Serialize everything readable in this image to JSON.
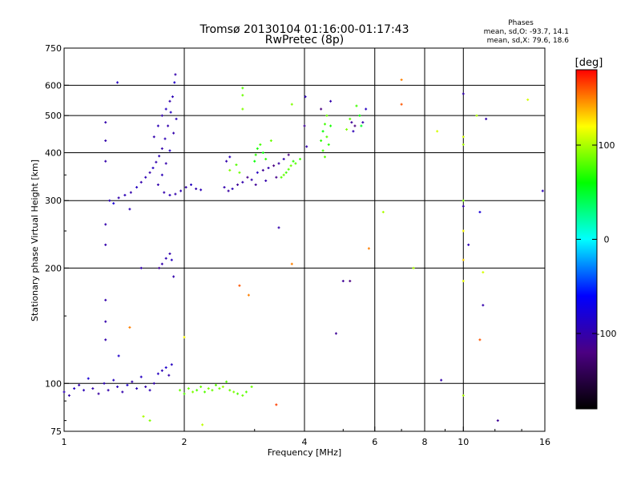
{
  "header": {
    "title_line1": "Tromsø 20130104 01:16:00-01:17:43",
    "title_line2": "RwPretec (8p)",
    "stats_title": "Phases",
    "stats_o": "mean, sd,O: -93.7, 14.1",
    "stats_x": "mean, sd,X:  79.6, 18.6"
  },
  "colorbar": {
    "label": "[deg]",
    "ticks": [
      "100",
      "0",
      "-100"
    ],
    "tick_values": [
      100,
      0,
      -100
    ],
    "range": [
      -180,
      180
    ],
    "colors": [
      "#000000",
      "#4b0082",
      "#0000ff",
      "#00ffff",
      "#00ff00",
      "#ffff00",
      "#ff0000"
    ]
  },
  "chart_data": {
    "type": "scatter",
    "xscale": "log",
    "yscale": "log",
    "xlabel": "Frequency [MHz]",
    "ylabel": "Stationary phase Virtual Height [km]",
    "xlim": [
      1,
      16
    ],
    "ylim": [
      75,
      750
    ],
    "x_ticks": [
      "1",
      "2",
      "4",
      "6",
      "8",
      "10",
      "16"
    ],
    "x_tick_values": [
      1,
      2,
      4,
      6,
      8,
      10,
      16
    ],
    "x_gridlines": [
      2,
      4,
      6,
      8,
      10
    ],
    "y_ticks": [
      "750",
      "600",
      "500",
      "400",
      "300",
      "200",
      "100",
      "75"
    ],
    "y_tick_values": [
      750,
      600,
      500,
      400,
      300,
      200,
      100,
      75
    ],
    "y_gridlines": [
      100,
      200,
      300,
      400,
      500,
      600
    ],
    "grid": true,
    "color_key": "phase_deg",
    "series": [
      {
        "points": [
          [
            1.0,
            95,
            -95
          ],
          [
            1.03,
            93,
            -100
          ],
          [
            1.06,
            97,
            -90
          ],
          [
            1.09,
            99,
            -100
          ],
          [
            1.12,
            96,
            -95
          ],
          [
            1.15,
            103,
            -80
          ],
          [
            1.18,
            97,
            -100
          ],
          [
            1.22,
            94,
            -105
          ],
          [
            1.26,
            100,
            -95
          ],
          [
            1.29,
            96,
            -100
          ],
          [
            1.33,
            102,
            -90
          ],
          [
            1.36,
            98,
            -95
          ],
          [
            1.4,
            95,
            -100
          ],
          [
            1.44,
            99,
            -85
          ],
          [
            1.48,
            101,
            -100
          ],
          [
            1.52,
            97,
            -95
          ],
          [
            1.56,
            104,
            -90
          ],
          [
            1.6,
            98,
            -100
          ],
          [
            1.64,
            96,
            -95
          ],
          [
            1.68,
            100,
            -100
          ],
          [
            1.72,
            106,
            -90
          ],
          [
            1.76,
            108,
            -95
          ],
          [
            1.8,
            110,
            -85
          ],
          [
            1.83,
            105,
            -100
          ],
          [
            1.86,
            112,
            -90
          ],
          [
            1.37,
            118,
            -85
          ]
        ]
      },
      {
        "points": [
          [
            1.3,
            300,
            -95
          ],
          [
            1.33,
            295,
            -80
          ],
          [
            1.37,
            305,
            -100
          ],
          [
            1.42,
            310,
            -95
          ],
          [
            1.47,
            315,
            -100
          ],
          [
            1.52,
            325,
            -90
          ],
          [
            1.56,
            335,
            -100
          ],
          [
            1.6,
            345,
            -95
          ],
          [
            1.64,
            355,
            -100
          ],
          [
            1.67,
            365,
            -90
          ],
          [
            1.7,
            378,
            -100
          ],
          [
            1.73,
            392,
            -95
          ],
          [
            1.76,
            410,
            -100
          ],
          [
            1.79,
            435,
            -95
          ],
          [
            1.82,
            470,
            -100
          ],
          [
            1.85,
            510,
            -90
          ],
          [
            1.87,
            560,
            -95
          ],
          [
            1.89,
            610,
            -85
          ],
          [
            1.9,
            640,
            -100
          ],
          [
            1.72,
            330,
            -100
          ],
          [
            1.76,
            350,
            -95
          ],
          [
            1.8,
            375,
            -100
          ],
          [
            1.84,
            405,
            -90
          ],
          [
            1.88,
            450,
            -100
          ],
          [
            1.91,
            490,
            -95
          ],
          [
            1.68,
            440,
            -100
          ],
          [
            1.72,
            470,
            -95
          ],
          [
            1.76,
            500,
            -100
          ],
          [
            1.8,
            520,
            -90
          ],
          [
            1.84,
            545,
            -100
          ],
          [
            1.78,
            315,
            -100
          ],
          [
            1.84,
            310,
            -95
          ],
          [
            1.9,
            312,
            -100
          ],
          [
            1.96,
            318,
            -95
          ],
          [
            2.02,
            325,
            -100
          ],
          [
            2.08,
            330,
            -90
          ],
          [
            2.14,
            322,
            -100
          ],
          [
            2.2,
            320,
            -95
          ],
          [
            1.76,
            205,
            -100
          ],
          [
            1.8,
            212,
            -95
          ],
          [
            1.84,
            218,
            -100
          ],
          [
            1.86,
            210,
            -90
          ],
          [
            1.73,
            200,
            -110
          ],
          [
            1.88,
            190,
            -100
          ],
          [
            1.36,
            610,
            -90
          ],
          [
            1.27,
            480,
            -100
          ],
          [
            1.27,
            430,
            -100
          ],
          [
            1.27,
            380,
            -100
          ],
          [
            1.27,
            260,
            -100
          ],
          [
            1.27,
            230,
            -100
          ],
          [
            1.27,
            165,
            -100
          ],
          [
            1.27,
            145,
            -100
          ],
          [
            1.27,
            130,
            -100
          ],
          [
            1.46,
            285,
            -95
          ]
        ]
      },
      {
        "points": [
          [
            2.52,
            325,
            -100
          ],
          [
            2.58,
            318,
            -105
          ],
          [
            2.64,
            322,
            -95
          ],
          [
            2.72,
            330,
            -110
          ],
          [
            2.8,
            335,
            -100
          ],
          [
            2.88,
            345,
            -115
          ],
          [
            2.95,
            340,
            -100
          ],
          [
            3.05,
            355,
            -90
          ],
          [
            3.15,
            360,
            -110
          ],
          [
            3.25,
            365,
            -100
          ],
          [
            3.35,
            370,
            -120
          ],
          [
            3.45,
            375,
            -105
          ],
          [
            3.55,
            385,
            -100
          ],
          [
            3.65,
            395,
            -120
          ],
          [
            3.02,
            330,
            -110
          ],
          [
            3.2,
            338,
            -100
          ],
          [
            3.4,
            345,
            -115
          ],
          [
            4.0,
            470,
            -110
          ],
          [
            4.05,
            415,
            -100
          ],
          [
            4.02,
            560,
            -95
          ],
          [
            4.4,
            520,
            -120
          ],
          [
            4.65,
            545,
            -100
          ],
          [
            5.25,
            480,
            -110
          ],
          [
            5.3,
            455,
            -95
          ],
          [
            5.35,
            470,
            -120
          ],
          [
            5.6,
            480,
            -100
          ],
          [
            5.7,
            520,
            -90
          ],
          [
            2.55,
            380,
            -100
          ],
          [
            2.6,
            390,
            -95
          ]
        ]
      },
      {
        "points": [
          [
            1.95,
            96,
            85
          ],
          [
            2.0,
            94,
            80
          ],
          [
            2.05,
            97,
            85
          ],
          [
            2.1,
            95,
            90
          ],
          [
            2.15,
            96,
            80
          ],
          [
            2.2,
            98,
            85
          ],
          [
            2.25,
            95,
            80
          ],
          [
            2.3,
            97,
            90
          ],
          [
            2.35,
            96,
            85
          ],
          [
            2.4,
            99,
            80
          ],
          [
            2.45,
            97,
            85
          ],
          [
            2.5,
            98,
            95
          ],
          [
            2.55,
            101,
            80
          ],
          [
            2.6,
            96,
            85
          ],
          [
            2.66,
            95,
            90
          ],
          [
            2.72,
            94,
            80
          ],
          [
            2.8,
            93,
            85
          ],
          [
            2.86,
            95,
            80
          ],
          [
            2.95,
            98,
            85
          ],
          [
            2.6,
            360,
            90
          ],
          [
            2.7,
            372,
            80
          ],
          [
            2.75,
            355,
            85
          ],
          [
            2.8,
            590,
            80
          ],
          [
            2.8,
            565,
            85
          ],
          [
            2.8,
            520,
            90
          ],
          [
            3.0,
            380,
            60
          ],
          [
            3.02,
            395,
            70
          ],
          [
            3.05,
            410,
            65
          ],
          [
            3.1,
            420,
            75
          ],
          [
            3.15,
            400,
            60
          ],
          [
            3.2,
            385,
            70
          ],
          [
            3.3,
            430,
            85
          ],
          [
            3.5,
            345,
            80
          ],
          [
            3.55,
            350,
            85
          ],
          [
            3.6,
            355,
            75
          ],
          [
            3.65,
            362,
            80
          ],
          [
            3.7,
            370,
            85
          ],
          [
            3.75,
            380,
            70
          ],
          [
            3.8,
            375,
            80
          ],
          [
            3.9,
            385,
            75
          ],
          [
            3.72,
            535,
            90
          ],
          [
            3.72,
            205,
            150
          ],
          [
            4.4,
            430,
            70
          ],
          [
            4.45,
            455,
            60
          ],
          [
            4.5,
            475,
            75
          ],
          [
            4.55,
            440,
            80
          ],
          [
            4.6,
            420,
            70
          ],
          [
            4.65,
            470,
            65
          ],
          [
            4.55,
            500,
            85
          ],
          [
            4.45,
            405,
            75
          ],
          [
            4.5,
            390,
            80
          ],
          [
            5.1,
            460,
            90
          ],
          [
            5.2,
            490,
            80
          ],
          [
            5.4,
            530,
            75
          ],
          [
            5.5,
            500,
            60
          ],
          [
            5.55,
            470,
            50
          ],
          [
            5.8,
            225,
            150
          ],
          [
            6.3,
            280,
            100
          ],
          [
            7.0,
            620,
            150
          ],
          [
            7.0,
            535,
            160
          ],
          [
            7.5,
            200,
            100
          ],
          [
            8.6,
            455,
            110
          ],
          [
            10.0,
            440,
            110
          ],
          [
            10.0,
            420,
            100
          ],
          [
            10.0,
            300,
            90
          ],
          [
            10.0,
            250,
            120
          ],
          [
            10.0,
            210,
            130
          ],
          [
            10.0,
            185,
            115
          ],
          [
            10.0,
            93,
            100
          ],
          [
            10.8,
            500,
            100
          ],
          [
            11.0,
            130,
            160
          ],
          [
            11.2,
            195,
            110
          ],
          [
            14.5,
            550,
            110
          ],
          [
            1.46,
            140,
            150
          ],
          [
            1.58,
            82,
            100
          ],
          [
            1.64,
            80,
            90
          ],
          [
            2.0,
            132,
            120
          ],
          [
            2.22,
            78,
            105
          ],
          [
            2.9,
            170,
            150
          ],
          [
            3.4,
            88,
            165
          ],
          [
            2.75,
            180,
            160
          ],
          [
            5.0,
            185,
            -110
          ]
        ]
      },
      {
        "points": [
          [
            3.45,
            255,
            -100
          ],
          [
            4.8,
            135,
            -110
          ],
          [
            5.2,
            185,
            -120
          ],
          [
            8.8,
            102,
            -100
          ],
          [
            10.0,
            290,
            -100
          ],
          [
            10.0,
            570,
            -100
          ],
          [
            10.3,
            230,
            -95
          ],
          [
            11.2,
            160,
            -100
          ],
          [
            11.4,
            490,
            -100
          ],
          [
            12.2,
            80,
            -110
          ],
          [
            11.0,
            280,
            -80
          ],
          [
            15.8,
            318,
            -95
          ],
          [
            1.56,
            200,
            -100
          ]
        ]
      }
    ]
  }
}
